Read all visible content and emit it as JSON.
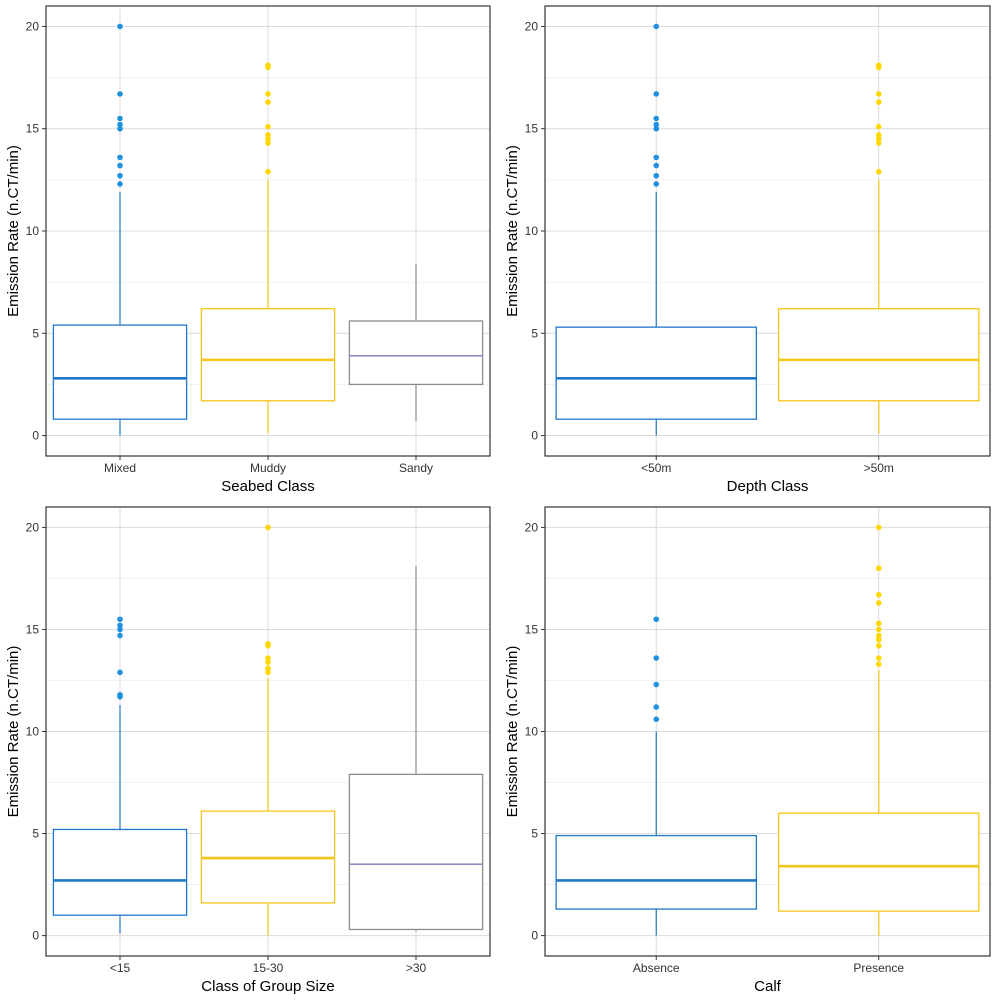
{
  "colors": {
    "blue": "#1f78c8",
    "blue_point": "#1e90e0",
    "yellow": "#f5c518",
    "yellow_point": "#ffd700",
    "gray": "#8c8c8c",
    "gray_median": "#7b7bb5",
    "grid_major": "#dcdcdc",
    "grid_minor": "#ebebeb",
    "panel_border": "#333333"
  },
  "chart_data": [
    {
      "type": "boxplot",
      "xlabel": "Seabed Class",
      "ylabel": "Emission Rate (n.CT/min)",
      "ylim": [
        -1,
        21
      ],
      "yticks": [
        "0",
        "5",
        "10",
        "15",
        "20"
      ],
      "grid": true,
      "categories": [
        "Mixed",
        "Muddy",
        "Sandy"
      ],
      "boxes": [
        {
          "category": "Mixed",
          "color": "blue",
          "min": 0,
          "q1": 0.8,
          "median": 2.8,
          "q3": 5.4,
          "max": 11.9,
          "outliers": [
            12.3,
            12.7,
            13.2,
            13.6,
            15.0,
            15.2,
            15.5,
            16.7,
            20.0
          ]
        },
        {
          "category": "Muddy",
          "color": "yellow",
          "min": 0.1,
          "q1": 1.7,
          "median": 3.7,
          "q3": 6.2,
          "max": 12.5,
          "outliers": [
            12.9,
            14.3,
            14.5,
            14.7,
            15.1,
            16.3,
            16.7,
            18.0,
            18.1
          ]
        },
        {
          "category": "Sandy",
          "color": "gray",
          "min": 0.7,
          "q1": 2.5,
          "median": 3.9,
          "q3": 5.6,
          "max": 8.4,
          "outliers": []
        }
      ]
    },
    {
      "type": "boxplot",
      "xlabel": "Depth Class",
      "ylabel": "Emission Rate (n.CT/min)",
      "ylim": [
        -1,
        21
      ],
      "yticks": [
        "0",
        "5",
        "10",
        "15",
        "20"
      ],
      "grid": true,
      "categories": [
        "<50m",
        ">50m"
      ],
      "boxes": [
        {
          "category": "<50m",
          "color": "blue",
          "min": 0,
          "q1": 0.8,
          "median": 2.8,
          "q3": 5.3,
          "max": 11.9,
          "outliers": [
            12.3,
            12.7,
            13.2,
            13.6,
            15.0,
            15.2,
            15.5,
            16.7,
            20.0
          ]
        },
        {
          "category": ">50m",
          "color": "yellow",
          "min": 0.1,
          "q1": 1.7,
          "median": 3.7,
          "q3": 6.2,
          "max": 12.5,
          "outliers": [
            12.9,
            14.3,
            14.5,
            14.7,
            15.1,
            16.3,
            16.7,
            18.0,
            18.1
          ]
        }
      ]
    },
    {
      "type": "boxplot",
      "xlabel": "Class of Group Size",
      "ylabel": "Emission Rate (n.CT/min)",
      "ylim": [
        -1,
        21
      ],
      "yticks": [
        "0",
        "5",
        "10",
        "15",
        "20"
      ],
      "grid": true,
      "categories": [
        "<15",
        "15-30",
        ">30"
      ],
      "boxes": [
        {
          "category": "<15",
          "color": "blue",
          "min": 0.1,
          "q1": 1.0,
          "median": 2.7,
          "q3": 5.2,
          "max": 11.3,
          "outliers": [
            11.7,
            11.8,
            12.9,
            14.7,
            15.0,
            15.2,
            15.5
          ]
        },
        {
          "category": "15-30",
          "color": "yellow",
          "min": 0,
          "q1": 1.6,
          "median": 3.8,
          "q3": 6.1,
          "max": 12.6,
          "outliers": [
            12.9,
            13.1,
            13.4,
            13.6,
            14.2,
            14.3,
            20.0
          ]
        },
        {
          "category": ">30",
          "color": "gray",
          "min": 0.2,
          "q1": 0.3,
          "median": 3.5,
          "q3": 7.9,
          "max": 18.1,
          "outliers": []
        }
      ]
    },
    {
      "type": "boxplot",
      "xlabel": "Calf",
      "ylabel": "Emission Rate (n.CT/min)",
      "ylim": [
        -1,
        21
      ],
      "yticks": [
        "0",
        "5",
        "10",
        "15",
        "20"
      ],
      "grid": true,
      "categories": [
        "Absence",
        "Presence"
      ],
      "boxes": [
        {
          "category": "Absence",
          "color": "blue",
          "min": 0,
          "q1": 1.3,
          "median": 2.7,
          "q3": 4.9,
          "max": 10.0,
          "outliers": [
            10.6,
            11.2,
            12.3,
            13.6,
            15.5
          ]
        },
        {
          "category": "Presence",
          "color": "yellow",
          "min": 0,
          "q1": 1.2,
          "median": 3.4,
          "q3": 6.0,
          "max": 13.0,
          "outliers": [
            13.3,
            13.6,
            14.2,
            14.5,
            14.7,
            15.0,
            15.3,
            16.3,
            16.7,
            18.0,
            20.0
          ]
        }
      ]
    }
  ]
}
